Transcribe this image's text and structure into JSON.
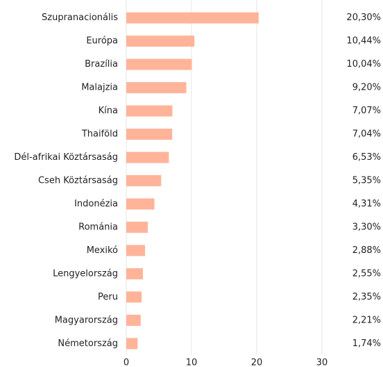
{
  "chart_data": {
    "type": "bar",
    "orientation": "horizontal",
    "categories": [
      "Szupranacionális",
      "Európa",
      "Brazília",
      "Malajzia",
      "Kína",
      "Thaiföld",
      "Dél-afrikai Köztársaság",
      "Cseh Köztársaság",
      "Indonézia",
      "Románia",
      "Mexikó",
      "Lengyelország",
      "Peru",
      "Magyarország",
      "Németország"
    ],
    "values": [
      20.3,
      10.44,
      10.04,
      9.2,
      7.07,
      7.04,
      6.53,
      5.35,
      4.31,
      3.3,
      2.88,
      2.55,
      2.35,
      2.21,
      1.74
    ],
    "value_labels": [
      "20,30%",
      "10,44%",
      "10,04%",
      "9,20%",
      "7,07%",
      "7,04%",
      "6,53%",
      "5,35%",
      "4,31%",
      "3,30%",
      "2,88%",
      "2,55%",
      "2,35%",
      "2,21%",
      "1,74%"
    ],
    "color": "#ffb499",
    "xlim": [
      0,
      30
    ],
    "xticks": [
      0,
      10,
      20,
      30
    ],
    "grid": true
  }
}
